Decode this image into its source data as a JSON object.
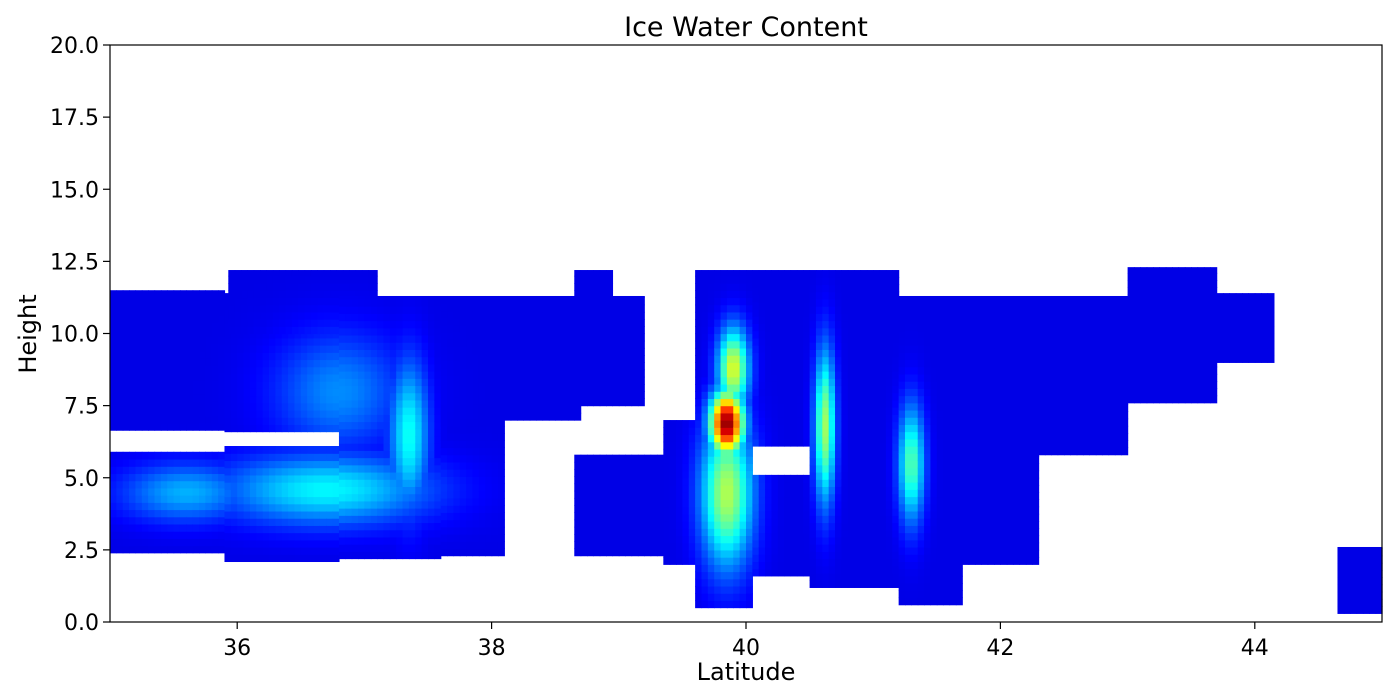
{
  "chart_data": {
    "type": "heatmap",
    "title": "Ice Water Content",
    "xlabel": "Latitude",
    "ylabel": "Height",
    "xlim": [
      35,
      45
    ],
    "ylim": [
      0,
      20
    ],
    "x_ticks": [
      "36",
      "38",
      "40",
      "42",
      "44"
    ],
    "y_ticks": [
      "0.0",
      "2.5",
      "5.0",
      "7.5",
      "10.0",
      "12.5",
      "15.0",
      "17.5",
      "20.0"
    ],
    "colormap": "jet",
    "grid": false,
    "cloud_segments": [
      {
        "lat_start": 35.0,
        "lat_end": 35.9,
        "base": 2.4,
        "top": 11.5,
        "gap_from": 6.0,
        "gap_to": 6.6
      },
      {
        "lat_start": 35.9,
        "lat_end": 36.8,
        "base": 2.1,
        "top": 11.4,
        "gap_from": 6.1,
        "gap_to": 6.5
      },
      {
        "lat_start": 35.93,
        "lat_end": 37.1,
        "base": 10.0,
        "top": 12.2
      },
      {
        "lat_start": 36.8,
        "lat_end": 37.6,
        "base": 2.2,
        "top": 11.3
      },
      {
        "lat_start": 37.6,
        "lat_end": 38.1,
        "base": 2.3,
        "top": 11.3
      },
      {
        "lat_start": 38.1,
        "lat_end": 38.7,
        "base": 7.0,
        "top": 11.3
      },
      {
        "lat_start": 38.7,
        "lat_end": 39.2,
        "base": 7.5,
        "top": 11.3
      },
      {
        "lat_start": 38.65,
        "lat_end": 38.95,
        "base": 10.0,
        "top": 12.2
      },
      {
        "lat_start": 38.65,
        "lat_end": 39.35,
        "base": 2.3,
        "top": 5.8
      },
      {
        "lat_start": 39.35,
        "lat_end": 39.6,
        "base": 2.0,
        "top": 7.0
      },
      {
        "lat_start": 39.6,
        "lat_end": 40.05,
        "base": 0.5,
        "top": 12.2
      },
      {
        "lat_start": 40.05,
        "lat_end": 40.5,
        "base": 1.6,
        "top": 12.2,
        "gap_from": 5.2,
        "gap_to": 6.2
      },
      {
        "lat_start": 40.5,
        "lat_end": 41.2,
        "base": 1.2,
        "top": 12.2
      },
      {
        "lat_start": 41.2,
        "lat_end": 41.7,
        "base": 0.6,
        "top": 11.3
      },
      {
        "lat_start": 41.7,
        "lat_end": 42.3,
        "base": 2.0,
        "top": 11.3
      },
      {
        "lat_start": 42.3,
        "lat_end": 43.0,
        "base": 5.8,
        "top": 11.3
      },
      {
        "lat_start": 43.0,
        "lat_end": 43.7,
        "base": 7.6,
        "top": 12.3
      },
      {
        "lat_start": 43.7,
        "lat_end": 44.15,
        "base": 9.0,
        "top": 11.4
      },
      {
        "lat_start": 44.65,
        "lat_end": 45.0,
        "base": 0.3,
        "top": 2.6
      }
    ],
    "intensity_cores": [
      {
        "lat": 36.7,
        "height": 4.6,
        "peak": 0.3,
        "lat_width": 0.8,
        "height_width": 1.2
      },
      {
        "lat": 35.6,
        "height": 4.5,
        "peak": 0.22,
        "lat_width": 0.5,
        "height_width": 1.0
      },
      {
        "lat": 37.35,
        "height": 6.5,
        "peak": 0.32,
        "lat_width": 0.15,
        "height_width": 2.5
      },
      {
        "lat": 36.8,
        "height": 8.0,
        "peak": 0.18,
        "lat_width": 0.5,
        "height_width": 2.0
      },
      {
        "lat": 39.85,
        "height": 6.9,
        "peak": 1.0,
        "lat_width": 0.13,
        "height_width": 1.1
      },
      {
        "lat": 39.85,
        "height": 4.5,
        "peak": 0.5,
        "lat_width": 0.2,
        "height_width": 2.5
      },
      {
        "lat": 39.9,
        "height": 8.8,
        "peak": 0.55,
        "lat_width": 0.12,
        "height_width": 1.4
      },
      {
        "lat": 40.62,
        "height": 6.8,
        "peak": 0.48,
        "lat_width": 0.08,
        "height_width": 2.6
      },
      {
        "lat": 41.3,
        "height": 5.5,
        "peak": 0.4,
        "lat_width": 0.1,
        "height_width": 2.0
      }
    ]
  }
}
